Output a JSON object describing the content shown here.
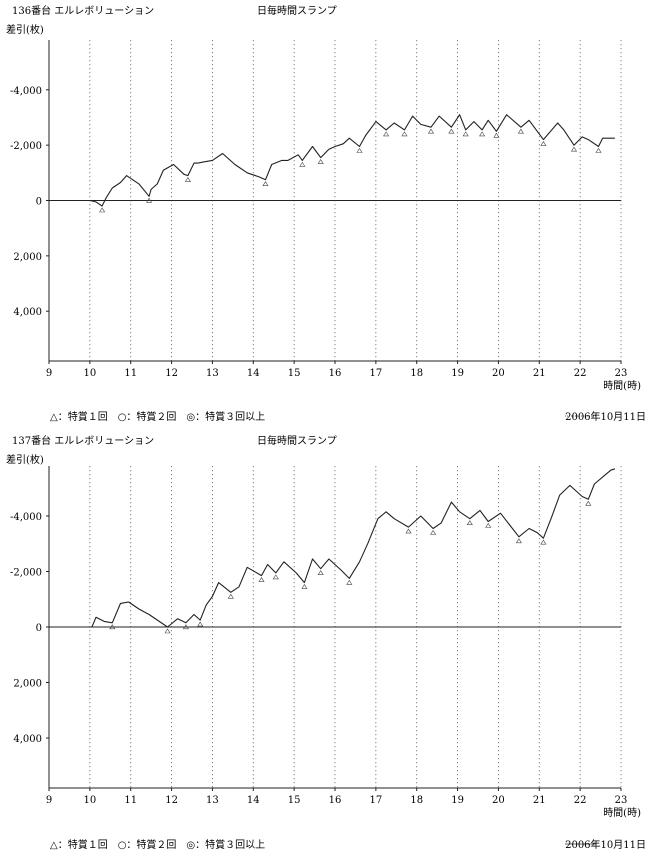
{
  "charts": [
    {
      "title": "136番台 エルレボリューション",
      "subtitle": "日毎時間スランプ",
      "ylabel": "差引(枚)",
      "xlabel": "時間(時)",
      "legend": "△：特賞１回　○：特賞２回　◎：特賞３回以上",
      "date_label": "2006年10月11日"
    },
    {
      "title": "137番台 エルレボリューション",
      "subtitle": "日毎時間スランプ",
      "ylabel": "差引(枚)",
      "xlabel": "時間(時)",
      "legend": "△：特賞１回　○：特賞２回　◎：特賞３回以上",
      "date_label": "2006年10月11日"
    }
  ],
  "chart_data": [
    {
      "type": "line",
      "title": "136番台 エルレボリューション",
      "subtitle": "日毎時間スランプ",
      "xlabel": "時間(時)",
      "ylabel": "差引(枚)",
      "xlim": [
        9,
        23
      ],
      "ylim": [
        -5800,
        5800
      ],
      "y_inverted": true,
      "x_ticks": [
        9,
        10,
        11,
        12,
        13,
        14,
        15,
        16,
        17,
        18,
        19,
        20,
        21,
        22,
        23
      ],
      "x_tick_labels": [
        "9",
        "10",
        "11",
        "12",
        "13",
        "14",
        "15",
        "16",
        "17",
        "18",
        "19",
        "20",
        "21",
        "22",
        "23"
      ],
      "y_ticks": [
        -4000,
        -2000,
        0,
        2000,
        4000
      ],
      "y_tick_labels": [
        "-4,000",
        "-2,000",
        "0",
        "2,000",
        "4,000"
      ],
      "vertical_grid": "dotted",
      "line_color": "#222222",
      "series": [
        {
          "x": [
            9.0,
            10.0,
            10.15,
            10.3,
            10.4,
            10.55,
            10.75,
            10.9,
            11.2,
            11.45,
            11.5,
            11.65,
            11.8,
            12.05,
            12.3,
            12.4,
            12.55,
            12.65,
            12.8,
            13.0,
            13.25,
            13.55,
            13.85,
            14.15,
            14.3,
            14.45,
            14.7,
            14.85,
            15.1,
            15.2,
            15.45,
            15.65,
            15.85,
            16.0,
            16.2,
            16.35,
            16.6,
            16.75,
            17.0,
            17.25,
            17.45,
            17.7,
            17.9,
            18.1,
            18.35,
            18.55,
            18.85,
            19.05,
            19.2,
            19.4,
            19.6,
            19.75,
            19.95,
            20.2,
            20.55,
            20.75,
            21.1,
            21.45,
            21.6,
            21.85,
            22.05,
            22.2,
            22.45,
            22.55,
            22.85
          ],
          "y": [
            0,
            0,
            50,
            200,
            -100,
            -450,
            -650,
            -900,
            -600,
            -150,
            -400,
            -600,
            -1100,
            -1300,
            -950,
            -900,
            -1350,
            -1350,
            -1400,
            -1450,
            -1700,
            -1300,
            -1000,
            -850,
            -750,
            -1300,
            -1450,
            -1450,
            -1650,
            -1450,
            -1950,
            -1550,
            -1850,
            -1950,
            -2050,
            -2250,
            -1950,
            -2350,
            -2850,
            -2550,
            -2800,
            -2550,
            -3050,
            -2750,
            -2650,
            -3050,
            -2650,
            -3100,
            -2550,
            -2850,
            -2550,
            -2900,
            -2500,
            -3100,
            -2650,
            -2900,
            -2200,
            -2800,
            -2550,
            -2000,
            -2300,
            -2200,
            -1950,
            -2250,
            -2250
          ]
        }
      ]
    },
    {
      "type": "line",
      "title": "137番台 エルレボリューション",
      "subtitle": "日毎時間スランプ",
      "xlabel": "時間(時)",
      "ylabel": "差引(枚)",
      "xlim": [
        9,
        23
      ],
      "ylim": [
        -5800,
        5800
      ],
      "y_inverted": true,
      "x_ticks": [
        9,
        10,
        11,
        12,
        13,
        14,
        15,
        16,
        17,
        18,
        19,
        20,
        21,
        22,
        23
      ],
      "x_tick_labels": [
        "9",
        "10",
        "11",
        "12",
        "13",
        "14",
        "15",
        "16",
        "17",
        "18",
        "19",
        "20",
        "21",
        "22",
        "23"
      ],
      "y_ticks": [
        -4000,
        -2000,
        0,
        2000,
        4000
      ],
      "y_tick_labels": [
        "-4,000",
        "-2,000",
        "0",
        "2,000",
        "4,000"
      ],
      "vertical_grid": "dotted",
      "line_color": "#222222",
      "series": [
        {
          "x": [
            9.0,
            10.0,
            10.05,
            10.15,
            10.35,
            10.55,
            10.75,
            10.95,
            11.2,
            11.45,
            11.9,
            12.15,
            12.35,
            12.55,
            12.7,
            12.85,
            13.0,
            13.15,
            13.45,
            13.65,
            13.85,
            14.2,
            14.35,
            14.55,
            14.75,
            15.05,
            15.25,
            15.45,
            15.65,
            15.85,
            16.15,
            16.35,
            16.6,
            16.8,
            17.05,
            17.25,
            17.45,
            17.8,
            18.1,
            18.4,
            18.6,
            18.85,
            19.05,
            19.3,
            19.55,
            19.75,
            20.05,
            20.5,
            20.75,
            20.95,
            21.1,
            21.3,
            21.5,
            21.75,
            22.05,
            22.2,
            22.35,
            22.55,
            22.75,
            22.85
          ],
          "y": [
            0,
            0,
            0,
            -350,
            -200,
            -150,
            -850,
            -900,
            -650,
            -450,
            0,
            -300,
            -150,
            -450,
            -250,
            -800,
            -1100,
            -1600,
            -1250,
            -1450,
            -2150,
            -1850,
            -2250,
            -1950,
            -2350,
            -1950,
            -1600,
            -2450,
            -2100,
            -2450,
            -2050,
            -1750,
            -2350,
            -3000,
            -3900,
            -4150,
            -3900,
            -3600,
            -4000,
            -3550,
            -3750,
            -4500,
            -4150,
            -3900,
            -4200,
            -3800,
            -4100,
            -3250,
            -3550,
            -3400,
            -3200,
            -3950,
            -4750,
            -5100,
            -4700,
            -4600,
            -5150,
            -5400,
            -5650,
            -5700
          ]
        }
      ]
    }
  ]
}
